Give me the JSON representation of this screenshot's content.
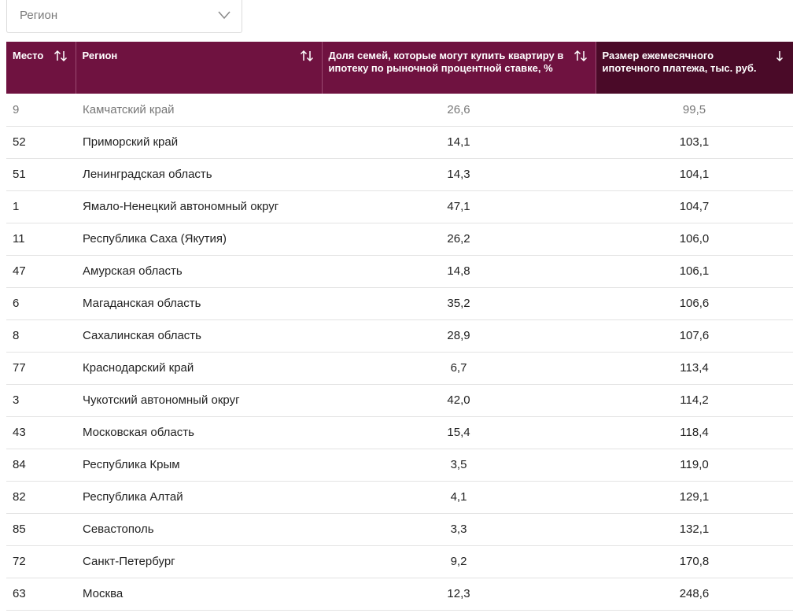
{
  "filter": {
    "placeholder": "Регион",
    "icon": "chevron-down-icon"
  },
  "table": {
    "headers": {
      "place": "Место",
      "region": "Регион",
      "share": "Доля семей, которые могут купить квартиру в ипотеку по рыночной процентной ставке, %",
      "payment": "Размер ежемесячного ипотечного платежа, тыс. руб."
    },
    "colors": {
      "header": "#6f1240",
      "header_active": "#4a0a28"
    },
    "rows": [
      {
        "place": "9",
        "region": "Камчатский край",
        "share": "26,6",
        "payment": "99,5"
      },
      {
        "place": "52",
        "region": "Приморский край",
        "share": "14,1",
        "payment": "103,1"
      },
      {
        "place": "51",
        "region": "Ленинградская область",
        "share": "14,3",
        "payment": "104,1"
      },
      {
        "place": "1",
        "region": "Ямало-Ненецкий автономный округ",
        "share": "47,1",
        "payment": "104,7"
      },
      {
        "place": "11",
        "region": "Республика Саха (Якутия)",
        "share": "26,2",
        "payment": "106,0"
      },
      {
        "place": "47",
        "region": "Амурская область",
        "share": "14,8",
        "payment": "106,1"
      },
      {
        "place": "6",
        "region": "Магаданская область",
        "share": "35,2",
        "payment": "106,6"
      },
      {
        "place": "8",
        "region": "Сахалинская область",
        "share": "28,9",
        "payment": "107,6"
      },
      {
        "place": "77",
        "region": "Краснодарский край",
        "share": "6,7",
        "payment": "113,4"
      },
      {
        "place": "3",
        "region": "Чукотский автономный округ",
        "share": "42,0",
        "payment": "114,2"
      },
      {
        "place": "43",
        "region": "Московская область",
        "share": "15,4",
        "payment": "118,4"
      },
      {
        "place": "84",
        "region": "Республика Крым",
        "share": "3,5",
        "payment": "119,0"
      },
      {
        "place": "82",
        "region": "Республика Алтай",
        "share": "4,1",
        "payment": "129,1"
      },
      {
        "place": "85",
        "region": "Севастополь",
        "share": "3,3",
        "payment": "132,1"
      },
      {
        "place": "72",
        "region": "Санкт-Петербург",
        "share": "9,2",
        "payment": "170,8"
      },
      {
        "place": "63",
        "region": "Москва",
        "share": "12,3",
        "payment": "248,6"
      }
    ]
  }
}
